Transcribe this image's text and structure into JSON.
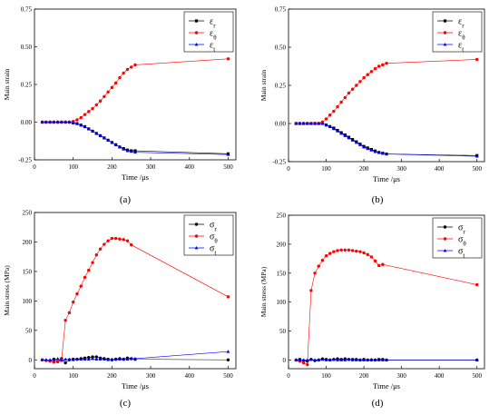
{
  "panels": [
    {
      "caption": "(a)"
    },
    {
      "caption": "(b)"
    },
    {
      "caption": "(c)"
    },
    {
      "caption": "(d)"
    }
  ],
  "chart_data": [
    {
      "type": "line",
      "xlabel": "Time  /μs",
      "ylabel": "Main strain",
      "xlim": [
        0,
        520
      ],
      "ylim": [
        -0.25,
        0.75
      ],
      "xticks": [
        0,
        100,
        200,
        300,
        400,
        500
      ],
      "yticks": [
        -0.25,
        0,
        0.25,
        0.5,
        0.75
      ],
      "ytick_labels": [
        "-0.25",
        "0.00",
        "0.25",
        "0.50",
        "0.75"
      ],
      "legend_position": "top-right",
      "series": [
        {
          "name": "εr",
          "color": "#000000",
          "marker": "square",
          "x": [
            20,
            30,
            40,
            50,
            60,
            70,
            80,
            90,
            100,
            110,
            120,
            130,
            140,
            150,
            160,
            170,
            180,
            190,
            200,
            210,
            220,
            230,
            240,
            250,
            260,
            500
          ],
          "y": [
            0,
            0,
            0,
            0,
            0,
            0,
            0,
            0,
            -0.005,
            -0.01,
            -0.02,
            -0.03,
            -0.045,
            -0.06,
            -0.075,
            -0.09,
            -0.105,
            -0.12,
            -0.135,
            -0.15,
            -0.165,
            -0.175,
            -0.185,
            -0.19,
            -0.19,
            -0.21
          ]
        },
        {
          "name": "εθ",
          "color": "#ff0000",
          "marker": "circle",
          "x": [
            20,
            30,
            40,
            50,
            60,
            70,
            80,
            90,
            100,
            110,
            120,
            130,
            140,
            150,
            160,
            170,
            180,
            190,
            200,
            210,
            220,
            230,
            240,
            250,
            260,
            500
          ],
          "y": [
            0,
            0,
            0,
            0,
            0,
            0,
            0,
            0,
            0.005,
            0.015,
            0.03,
            0.05,
            0.07,
            0.09,
            0.115,
            0.14,
            0.17,
            0.2,
            0.23,
            0.26,
            0.295,
            0.325,
            0.35,
            0.365,
            0.38,
            0.42
          ]
        },
        {
          "name": "εt",
          "color": "#0000ff",
          "marker": "triangle",
          "x": [
            20,
            30,
            40,
            50,
            60,
            70,
            80,
            90,
            100,
            110,
            120,
            130,
            140,
            150,
            160,
            170,
            180,
            190,
            200,
            210,
            220,
            230,
            240,
            250,
            260,
            500
          ],
          "y": [
            0,
            0,
            0,
            0,
            0,
            0,
            0,
            0,
            -0.005,
            -0.01,
            -0.02,
            -0.03,
            -0.045,
            -0.06,
            -0.075,
            -0.09,
            -0.105,
            -0.12,
            -0.135,
            -0.15,
            -0.165,
            -0.18,
            -0.19,
            -0.195,
            -0.2,
            -0.215
          ]
        }
      ]
    },
    {
      "type": "line",
      "xlabel": "Time  /μs",
      "ylabel": "Main strain",
      "xlim": [
        0,
        520
      ],
      "ylim": [
        -0.25,
        0.75
      ],
      "xticks": [
        0,
        100,
        200,
        300,
        400,
        500
      ],
      "yticks": [
        -0.25,
        0,
        0.25,
        0.5,
        0.75
      ],
      "ytick_labels": [
        "-0.25",
        "0.00",
        "0.25",
        "0.50",
        "0.75"
      ],
      "legend_position": "top-right",
      "series": [
        {
          "name": "εr",
          "color": "#000000",
          "marker": "square",
          "x": [
            20,
            30,
            40,
            50,
            60,
            70,
            80,
            90,
            100,
            110,
            120,
            130,
            140,
            150,
            160,
            170,
            180,
            190,
            200,
            210,
            220,
            230,
            240,
            250,
            260,
            500
          ],
          "y": [
            0,
            0,
            0,
            0,
            0,
            0,
            0,
            0,
            -0.01,
            -0.02,
            -0.03,
            -0.045,
            -0.06,
            -0.075,
            -0.09,
            -0.105,
            -0.12,
            -0.135,
            -0.15,
            -0.16,
            -0.17,
            -0.18,
            -0.19,
            -0.195,
            -0.2,
            -0.21
          ]
        },
        {
          "name": "εθ",
          "color": "#ff0000",
          "marker": "circle",
          "x": [
            20,
            30,
            40,
            50,
            60,
            70,
            80,
            90,
            100,
            110,
            120,
            130,
            140,
            150,
            160,
            170,
            180,
            190,
            200,
            210,
            220,
            230,
            240,
            250,
            260,
            500
          ],
          "y": [
            0,
            0,
            0,
            0,
            0,
            0,
            0,
            0.01,
            0.03,
            0.055,
            0.08,
            0.11,
            0.14,
            0.17,
            0.2,
            0.225,
            0.25,
            0.275,
            0.3,
            0.32,
            0.34,
            0.36,
            0.375,
            0.385,
            0.395,
            0.42
          ]
        },
        {
          "name": "εt",
          "color": "#0000ff",
          "marker": "triangle",
          "x": [
            20,
            30,
            40,
            50,
            60,
            70,
            80,
            90,
            100,
            110,
            120,
            130,
            140,
            150,
            160,
            170,
            180,
            190,
            200,
            210,
            220,
            230,
            240,
            250,
            260,
            500
          ],
          "y": [
            0,
            0,
            0,
            0,
            0,
            0,
            0,
            0,
            -0.01,
            -0.02,
            -0.035,
            -0.05,
            -0.065,
            -0.08,
            -0.095,
            -0.11,
            -0.125,
            -0.14,
            -0.155,
            -0.165,
            -0.175,
            -0.185,
            -0.19,
            -0.195,
            -0.2,
            -0.215
          ]
        }
      ]
    },
    {
      "type": "line",
      "xlabel": "Time /μs",
      "ylabel": "Main stress (MPa)",
      "xlim": [
        0,
        520
      ],
      "ylim": [
        -15,
        250
      ],
      "xticks": [
        0,
        100,
        200,
        300,
        400,
        500
      ],
      "yticks": [
        0,
        50,
        100,
        150,
        200,
        250
      ],
      "ytick_labels": [
        "0",
        "50",
        "100",
        "150",
        "200",
        "250"
      ],
      "legend_position": "top-right",
      "series": [
        {
          "name": "σr",
          "color": "#000000",
          "marker": "circle",
          "x": [
            20,
            30,
            40,
            50,
            60,
            70,
            80,
            90,
            100,
            110,
            120,
            130,
            140,
            150,
            160,
            170,
            180,
            190,
            200,
            210,
            220,
            230,
            240,
            250,
            260,
            500
          ],
          "y": [
            0,
            -1,
            -2,
            1,
            -3,
            2,
            -5,
            0,
            1,
            1,
            2,
            3,
            4,
            5,
            5,
            3,
            2,
            1,
            0,
            1,
            2,
            1,
            3,
            2,
            1,
            0
          ]
        },
        {
          "name": "σθ",
          "color": "#ff0000",
          "marker": "circle",
          "x": [
            20,
            30,
            40,
            50,
            60,
            70,
            80,
            90,
            100,
            110,
            120,
            130,
            140,
            150,
            160,
            170,
            180,
            190,
            200,
            210,
            220,
            230,
            240,
            250,
            500
          ],
          "y": [
            0,
            -1,
            -2,
            -4,
            -3,
            0,
            67,
            80,
            98,
            112,
            125,
            140,
            152,
            165,
            178,
            188,
            196,
            202,
            206,
            206,
            205,
            204,
            202,
            195,
            107
          ]
        },
        {
          "name": "σt",
          "color": "#0000ff",
          "marker": "triangle",
          "x": [
            20,
            30,
            40,
            50,
            60,
            70,
            80,
            90,
            100,
            110,
            120,
            130,
            140,
            150,
            160,
            170,
            180,
            190,
            200,
            210,
            220,
            230,
            240,
            250,
            260,
            500
          ],
          "y": [
            0,
            0,
            0,
            0,
            2,
            -1,
            1,
            1,
            0,
            1,
            1,
            1,
            1,
            2,
            1,
            1,
            1,
            0,
            1,
            1,
            1,
            1,
            1,
            2,
            2,
            14
          ]
        }
      ]
    },
    {
      "type": "line",
      "xlabel": "Time /μs",
      "ylabel": "Main stress (MPa)",
      "xlim": [
        0,
        520
      ],
      "ylim": [
        -15,
        250
      ],
      "xticks": [
        0,
        100,
        200,
        300,
        400,
        500
      ],
      "yticks": [
        0,
        50,
        100,
        150,
        200,
        250
      ],
      "ytick_labels": [
        "0",
        "50",
        "100",
        "150",
        "200",
        "250"
      ],
      "legend_position": "top-right",
      "series": [
        {
          "name": "σr",
          "color": "#000000",
          "marker": "circle",
          "x": [
            20,
            30,
            40,
            50,
            60,
            70,
            80,
            90,
            100,
            110,
            120,
            130,
            140,
            150,
            160,
            170,
            180,
            190,
            200,
            210,
            220,
            230,
            240,
            250,
            260,
            500
          ],
          "y": [
            0,
            1,
            -1,
            -2,
            1,
            -1,
            0,
            2,
            1,
            0,
            1,
            2,
            1,
            2,
            1,
            1,
            1,
            0,
            1,
            0,
            0,
            0,
            1,
            1,
            0,
            0
          ]
        },
        {
          "name": "σθ",
          "color": "#ff0000",
          "marker": "circle",
          "x": [
            20,
            30,
            40,
            50,
            60,
            70,
            80,
            90,
            100,
            110,
            120,
            130,
            140,
            150,
            160,
            170,
            180,
            190,
            200,
            210,
            220,
            230,
            240,
            250,
            500
          ],
          "y": [
            0,
            -2,
            -5,
            -8,
            120,
            150,
            162,
            172,
            180,
            184,
            187,
            189,
            190,
            190,
            190,
            189,
            188,
            187,
            185,
            182,
            178,
            171,
            163,
            165,
            130
          ]
        },
        {
          "name": "σt",
          "color": "#0000ff",
          "marker": "triangle",
          "x": [
            20,
            30,
            40,
            50,
            60,
            70,
            80,
            90,
            100,
            110,
            120,
            130,
            140,
            150,
            160,
            170,
            180,
            190,
            200,
            210,
            220,
            230,
            240,
            250,
            260,
            500
          ],
          "y": [
            0,
            0,
            0,
            0,
            1,
            0,
            0,
            1,
            0,
            0,
            1,
            0,
            0,
            0,
            1,
            0,
            0,
            0,
            0,
            0,
            1,
            0,
            0,
            0,
            0,
            0
          ]
        }
      ]
    }
  ]
}
